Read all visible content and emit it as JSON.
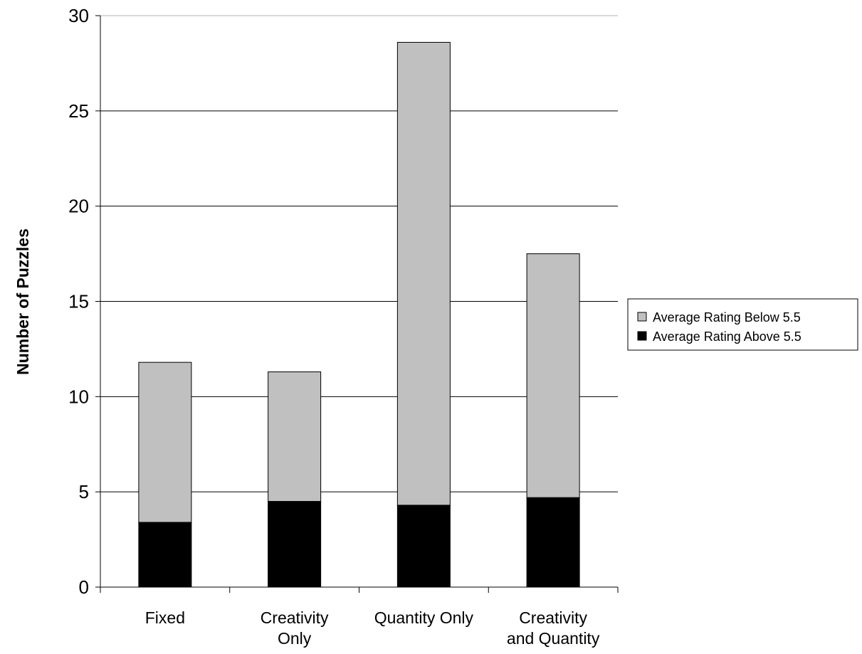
{
  "chart_data": {
    "type": "bar",
    "stacked": true,
    "title": "",
    "xlabel": "",
    "ylabel": "Number of Puzzles",
    "ylim": [
      0,
      30
    ],
    "yticks": [
      "0",
      "5",
      "10",
      "15",
      "20",
      "25",
      "30"
    ],
    "categories": [
      [
        "Fixed"
      ],
      [
        "Creativity",
        "Only"
      ],
      [
        "Quantity Only"
      ],
      [
        "Creativity",
        "and Quantity"
      ]
    ],
    "series": [
      {
        "name": "Average Rating Above 5.5",
        "color": "#000000",
        "values": [
          3.4,
          4.5,
          4.3,
          4.7
        ]
      },
      {
        "name": "Average Rating Below 5.5",
        "color": "#c0c0c0",
        "values": [
          8.4,
          6.8,
          24.3,
          12.8
        ]
      }
    ],
    "grid": true,
    "legend_position": "right",
    "legend_order": [
      "Average Rating Below 5.5",
      "Average Rating Above 5.5"
    ]
  }
}
